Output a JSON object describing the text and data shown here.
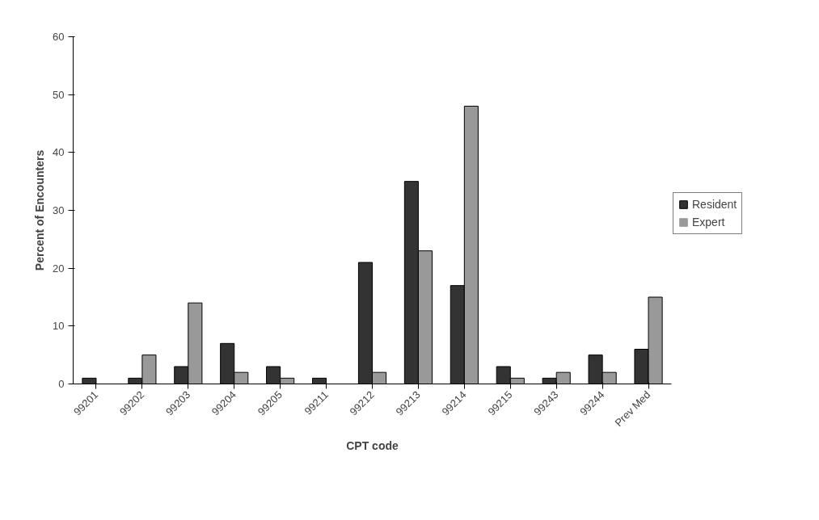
{
  "chart_data": {
    "type": "bar",
    "xlabel": "CPT code",
    "ylabel": "Percent of Encounters",
    "categories": [
      "99201",
      "99202",
      "99203",
      "99204",
      "99205",
      "99211",
      "99212",
      "99213",
      "99214",
      "99215",
      "99243",
      "99244",
      "Prev Med"
    ],
    "series": [
      {
        "name": "Resident",
        "color": "#333333",
        "values": [
          1,
          1,
          3,
          7,
          3,
          1,
          21,
          35,
          17,
          3,
          1,
          5,
          6
        ]
      },
      {
        "name": "Expert",
        "color": "#999999",
        "values": [
          0,
          5,
          14,
          2,
          1,
          0,
          2,
          23,
          48,
          1,
          2,
          2,
          15
        ]
      }
    ],
    "ylim": [
      0,
      60
    ],
    "yticks": [
      0,
      10,
      20,
      30,
      40,
      50,
      60
    ],
    "grid": false,
    "legend": "right"
  }
}
